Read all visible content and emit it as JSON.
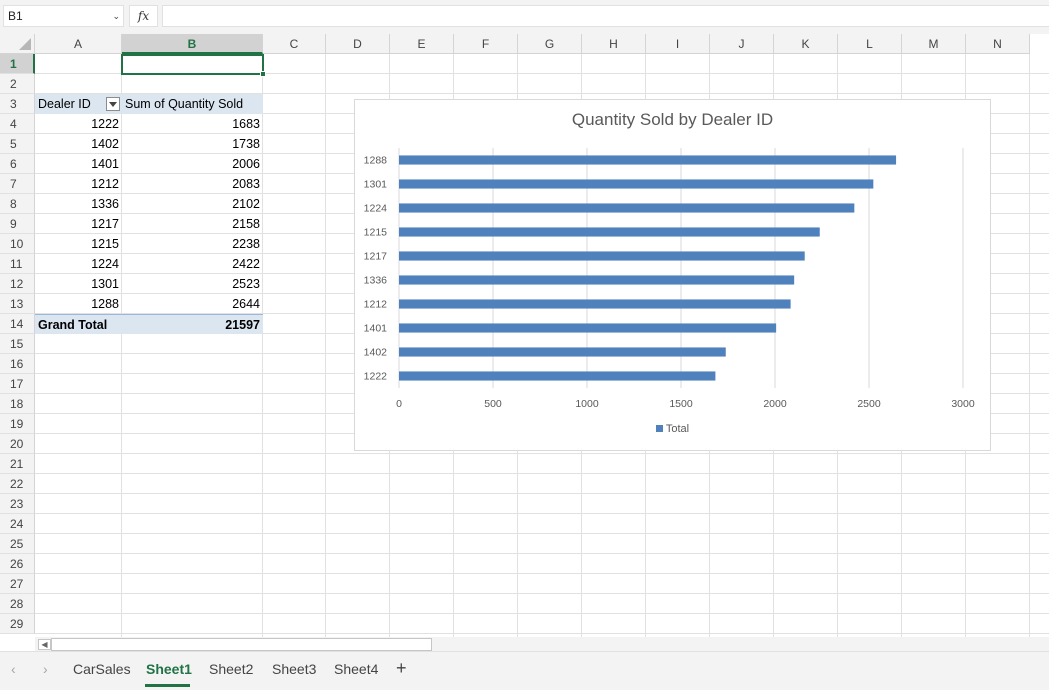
{
  "formula_bar": {
    "name_box": "B1",
    "fx_label": "fx",
    "formula": ""
  },
  "columns": [
    "A",
    "B",
    "C",
    "D",
    "E",
    "F",
    "G",
    "H",
    "I",
    "J",
    "K",
    "L",
    "M",
    "N"
  ],
  "rows": [
    "1",
    "2",
    "3",
    "4",
    "5",
    "6",
    "7",
    "8",
    "9",
    "10",
    "11",
    "12",
    "13",
    "14",
    "15",
    "16",
    "17",
    "18",
    "19",
    "20",
    "21",
    "22",
    "23",
    "24",
    "25",
    "26",
    "27",
    "28",
    "29"
  ],
  "pivot": {
    "header_row": [
      "Dealer ID",
      "Sum of Quantity Sold"
    ],
    "rows": [
      [
        "1222",
        "1683"
      ],
      [
        "1402",
        "1738"
      ],
      [
        "1401",
        "2006"
      ],
      [
        "1212",
        "2083"
      ],
      [
        "1336",
        "2102"
      ],
      [
        "1217",
        "2158"
      ],
      [
        "1215",
        "2238"
      ],
      [
        "1224",
        "2422"
      ],
      [
        "1301",
        "2523"
      ],
      [
        "1288",
        "2644"
      ]
    ],
    "total": [
      "Grand Total",
      "21597"
    ]
  },
  "chart_data": {
    "type": "bar",
    "orientation": "horizontal",
    "title": "Quantity Sold by Dealer ID",
    "categories": [
      "1222",
      "1402",
      "1401",
      "1212",
      "1336",
      "1217",
      "1215",
      "1224",
      "1301",
      "1288"
    ],
    "series": [
      {
        "name": "Total",
        "values": [
          1683,
          1738,
          2006,
          2083,
          2102,
          2158,
          2238,
          2422,
          2523,
          2644
        ]
      }
    ],
    "xlim": [
      0,
      3000
    ],
    "x_ticks": [
      0,
      500,
      1000,
      1500,
      2000,
      2500,
      3000
    ],
    "grid": true,
    "legend": "bottom",
    "color": "#4f81bd"
  },
  "sheet_tabs": [
    "CarSales",
    "Sheet1",
    "Sheet2",
    "Sheet3",
    "Sheet4"
  ],
  "active_tab": "Sheet1",
  "nav": {
    "prev": "‹",
    "next": "›",
    "add": "+"
  }
}
